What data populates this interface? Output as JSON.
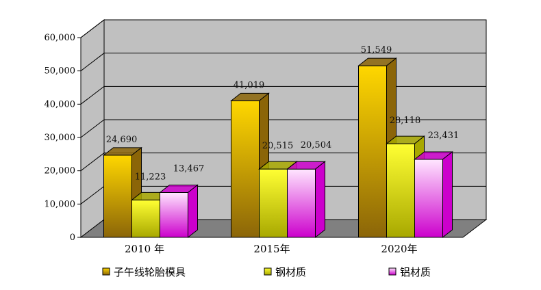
{
  "chart_data": {
    "type": "bar",
    "style": "3d-clustered-column",
    "categories": [
      "2010 年",
      "2015年",
      "2020年"
    ],
    "series": [
      {
        "name": "子午线轮胎模具",
        "values": [
          24690,
          41019,
          51549
        ],
        "labels": [
          "24,690",
          "41,019",
          "51,549"
        ],
        "color_light": "#FFD700",
        "color_dark": "#8B6508"
      },
      {
        "name": "钢材质",
        "values": [
          11223,
          20515,
          28118
        ],
        "labels": [
          "11,223",
          "20,515",
          "28,118"
        ],
        "color_light": "#FFFF33",
        "color_dark": "#A8A800"
      },
      {
        "name": "铝材质",
        "values": [
          13467,
          20504,
          23431
        ],
        "labels": [
          "13,467",
          "20,504",
          "23,431"
        ],
        "color_light": "#FFE6FF",
        "color_dark": "#CC00CC"
      }
    ],
    "yticks": [
      "0",
      "10,000",
      "20,000",
      "30,000",
      "40,000",
      "50,000",
      "60,000"
    ],
    "ylim": [
      0,
      60000
    ],
    "grid": true,
    "legend_position": "bottom",
    "wall_color": "#C0C0C0",
    "floor_color": "#808080"
  }
}
